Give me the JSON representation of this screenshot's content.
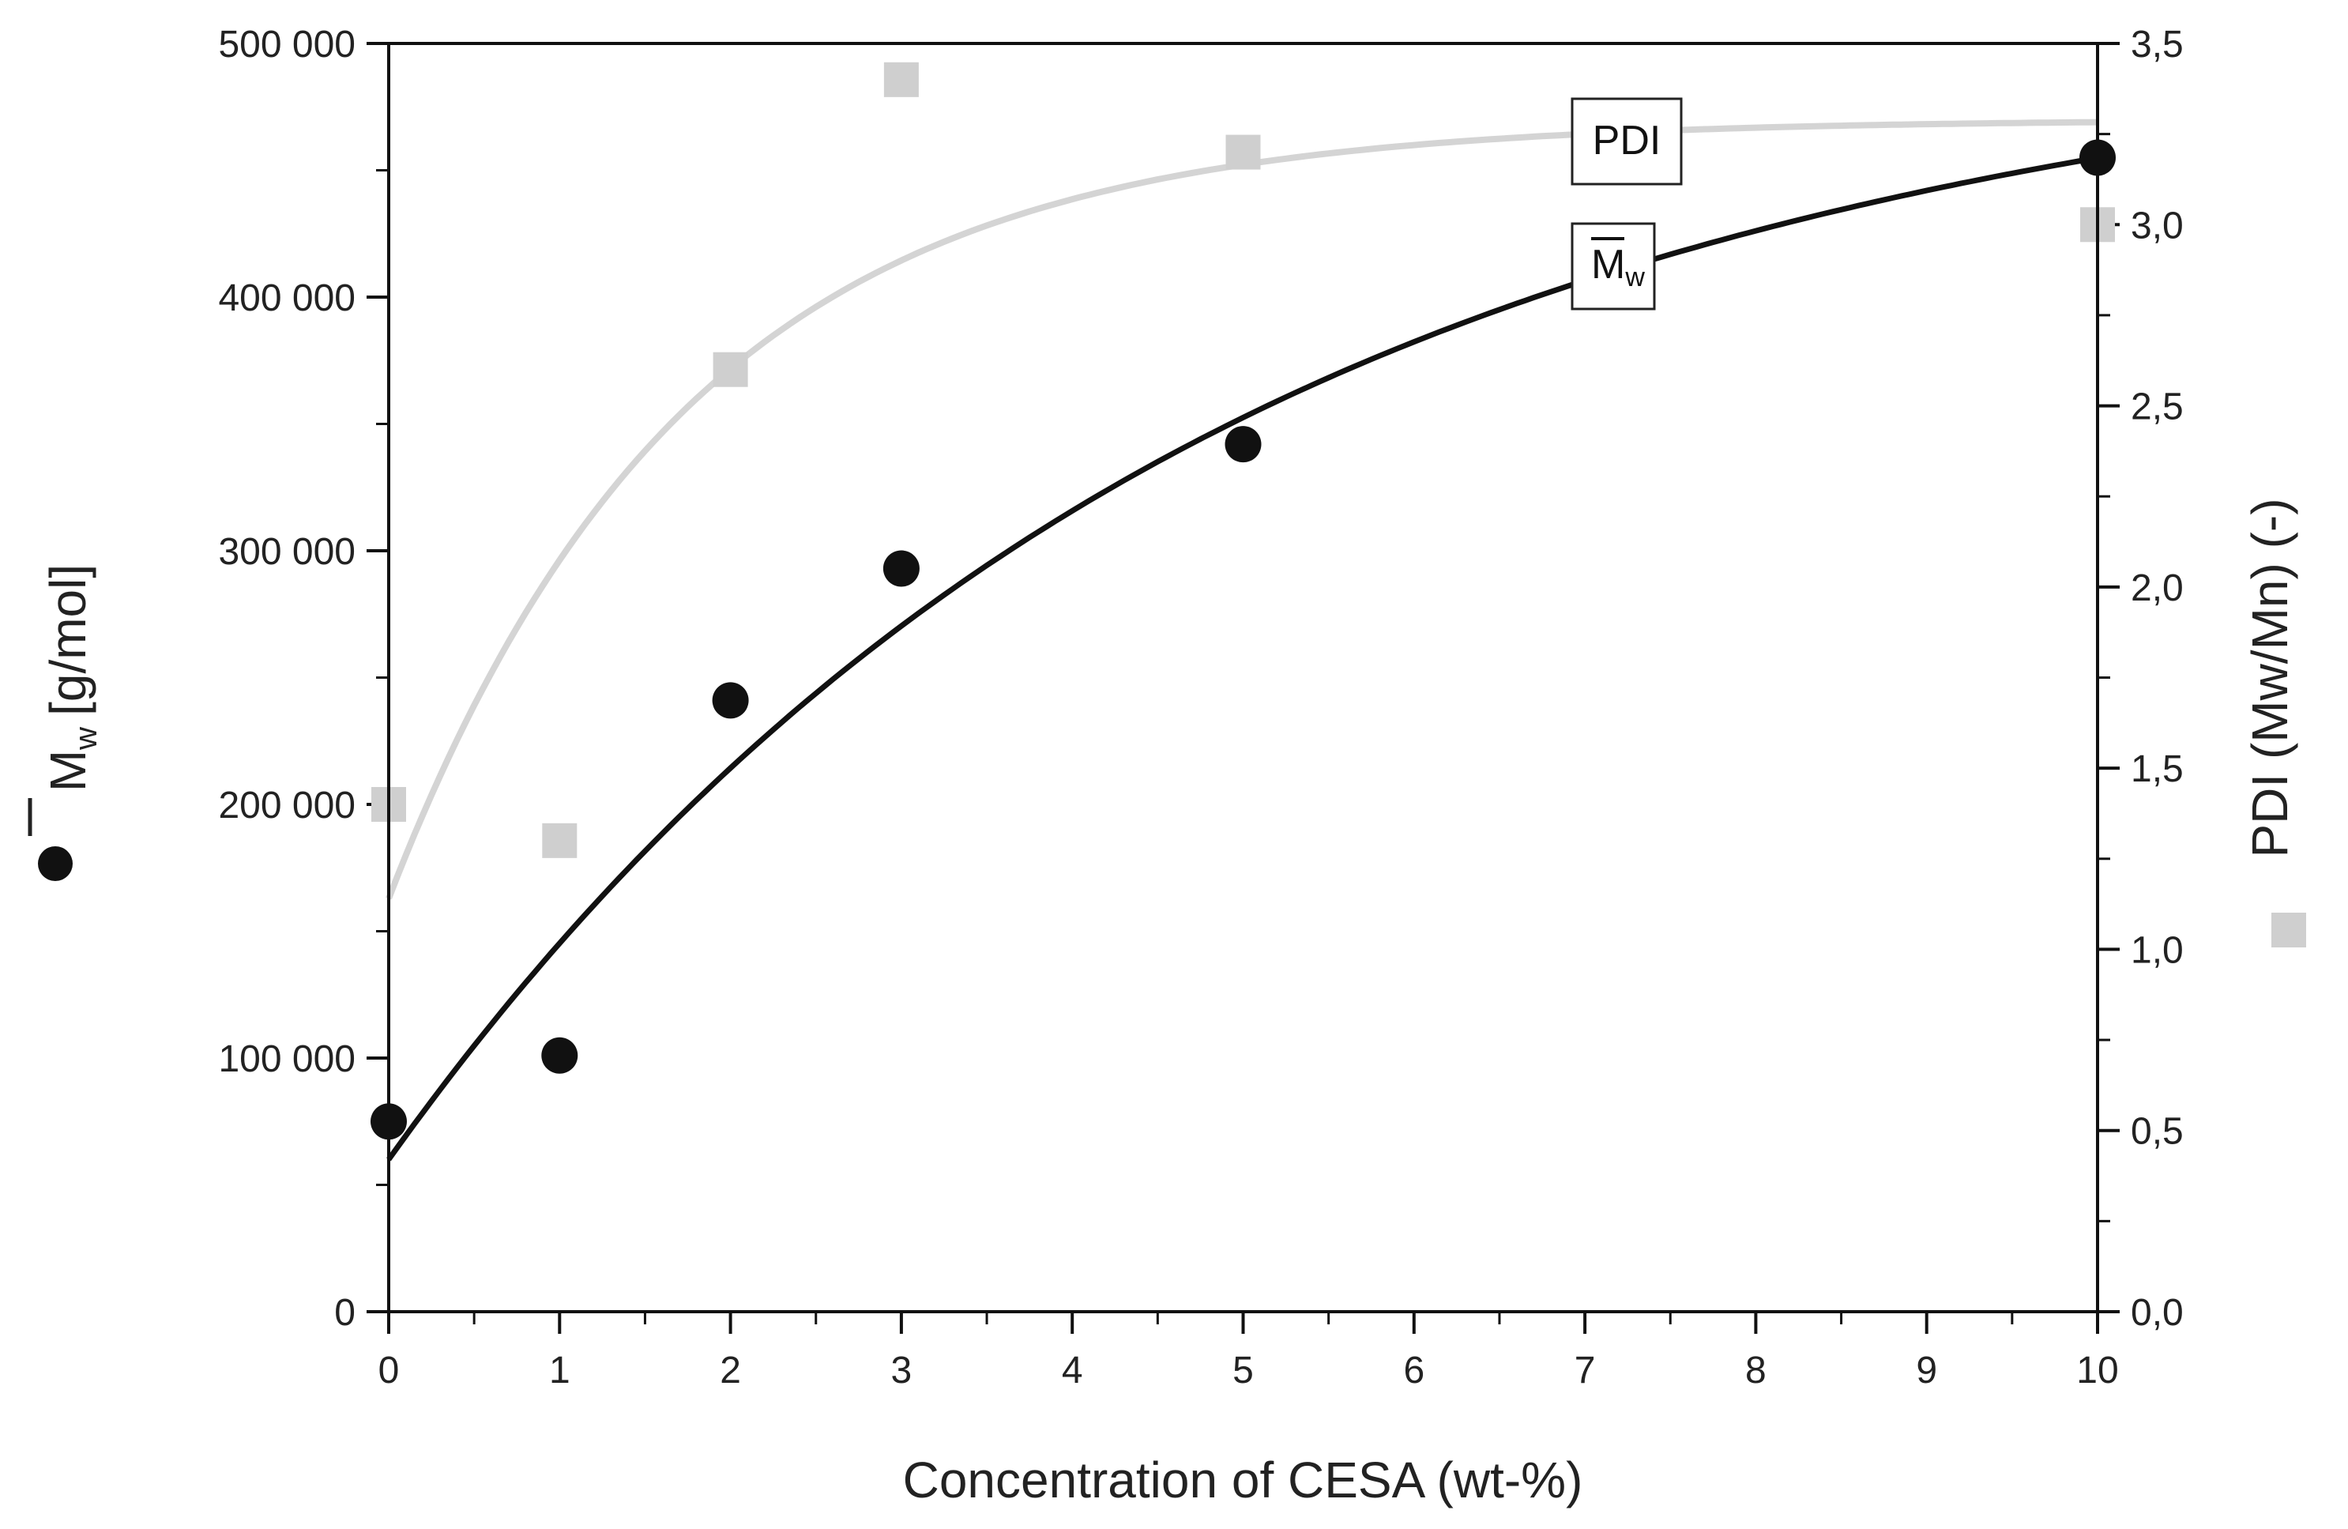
{
  "chart_data": {
    "type": "scatter",
    "x_label": "Concentration of CESA (wt-%)",
    "y_left_label": "M",
    "y_left_label_sub": "w",
    "y_left_label_unit": "[g/mol]",
    "y_right_label": "PDI (Mw/Mn) (-)",
    "x_range": [
      0,
      10
    ],
    "y_left_range": [
      0,
      500000
    ],
    "y_right_range": [
      0,
      3.5
    ],
    "x_ticks": [
      {
        "v": 0,
        "label": "0"
      },
      {
        "v": 1,
        "label": "1"
      },
      {
        "v": 2,
        "label": "2"
      },
      {
        "v": 3,
        "label": "3"
      },
      {
        "v": 4,
        "label": "4"
      },
      {
        "v": 5,
        "label": "5"
      },
      {
        "v": 6,
        "label": "6"
      },
      {
        "v": 7,
        "label": "7"
      },
      {
        "v": 8,
        "label": "8"
      },
      {
        "v": 9,
        "label": "9"
      },
      {
        "v": 10,
        "label": "10"
      }
    ],
    "y_left_ticks": [
      {
        "v": 0,
        "label": "0"
      },
      {
        "v": 100000,
        "label": "100 000"
      },
      {
        "v": 200000,
        "label": "200 000"
      },
      {
        "v": 300000,
        "label": "300 000"
      },
      {
        "v": 400000,
        "label": "400 000"
      },
      {
        "v": 500000,
        "label": "500 000"
      }
    ],
    "y_right_ticks": [
      {
        "v": 0,
        "label": "0,0"
      },
      {
        "v": 0.5,
        "label": "0,5"
      },
      {
        "v": 1.0,
        "label": "1,0"
      },
      {
        "v": 1.5,
        "label": "1,5"
      },
      {
        "v": 2.0,
        "label": "2,0"
      },
      {
        "v": 2.5,
        "label": "2,5"
      },
      {
        "v": 3.0,
        "label": "3,0"
      },
      {
        "v": 3.5,
        "label": "3,5"
      }
    ],
    "series": [
      {
        "name": "Mw",
        "axis": "left",
        "marker": "circle",
        "color": "#111111",
        "points": [
          {
            "x": 0,
            "y": 75000
          },
          {
            "x": 1,
            "y": 101000
          },
          {
            "x": 2,
            "y": 241000
          },
          {
            "x": 3,
            "y": 293000
          },
          {
            "x": 5,
            "y": 342000
          },
          {
            "x": 10,
            "y": 455000
          }
        ],
        "fit": {
          "model": "a - b*exp(-k*x)",
          "a": 510000,
          "b": 450000,
          "k": 0.21
        },
        "fit_label": "M",
        "fit_label_sub": "w"
      },
      {
        "name": "PDI",
        "axis": "right",
        "marker": "square",
        "color": "#cfcfcf",
        "points": [
          {
            "x": 0,
            "y": 1.4
          },
          {
            "x": 1,
            "y": 1.3
          },
          {
            "x": 2,
            "y": 2.6
          },
          {
            "x": 3,
            "y": 3.4
          },
          {
            "x": 5,
            "y": 3.2
          },
          {
            "x": 10,
            "y": 3.0
          }
        ],
        "fit": {
          "model": "a - b*exp(-k*x)",
          "a": 3.29,
          "b": 2.15,
          "k": 0.57
        },
        "fit_label": "PDI"
      }
    ]
  }
}
